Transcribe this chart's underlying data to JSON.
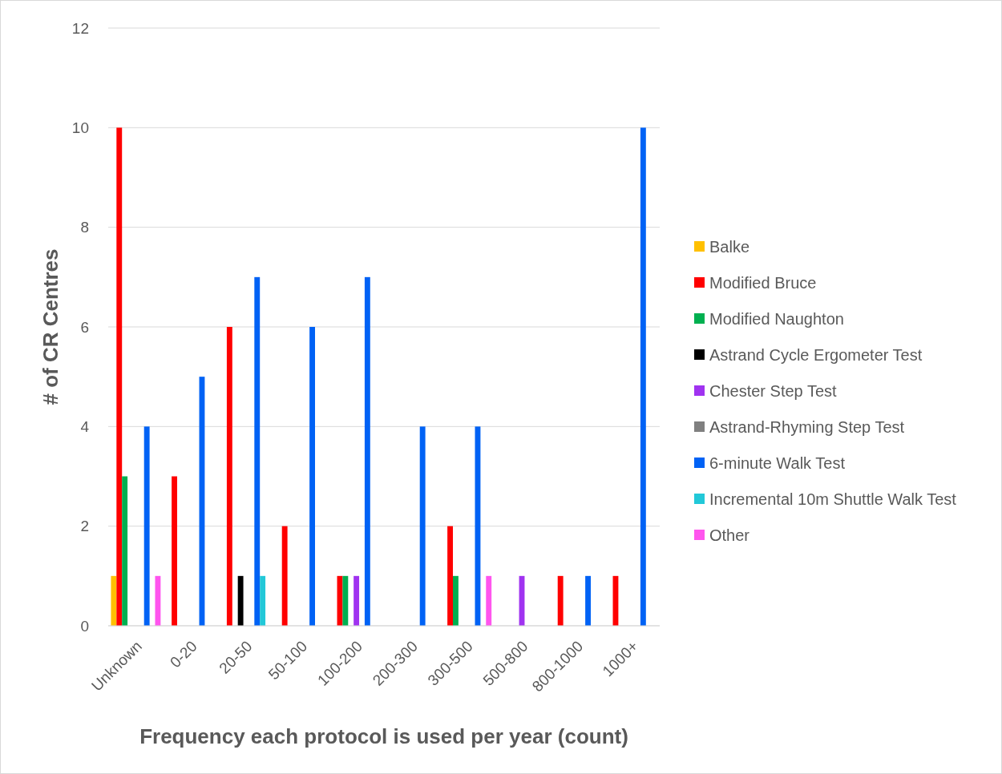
{
  "chart_data": {
    "type": "bar",
    "xlabel": "Frequency each protocol is used per year (count)",
    "ylabel": "# of CR Centres",
    "categories": [
      "Unknown",
      "0-20",
      "20-50",
      "50-100",
      "100-200",
      "200-300",
      "300-500",
      "500-800",
      "800-1000",
      "1000+"
    ],
    "series": [
      {
        "name": "Balke",
        "color": "#ffc000",
        "values": [
          1,
          null,
          null,
          null,
          null,
          null,
          null,
          null,
          null,
          null
        ]
      },
      {
        "name": "Modified Bruce",
        "color": "#ff0000",
        "values": [
          10,
          3,
          6,
          2,
          1,
          null,
          2,
          null,
          1,
          1
        ]
      },
      {
        "name": "Modified Naughton",
        "color": "#00b050",
        "values": [
          3,
          null,
          null,
          null,
          1,
          null,
          1,
          null,
          null,
          null
        ]
      },
      {
        "name": "Astrand Cycle Ergometer Test",
        "color": "#000000",
        "values": [
          null,
          null,
          1,
          null,
          null,
          null,
          null,
          null,
          null,
          null
        ]
      },
      {
        "name": "Chester Step Test",
        "color": "#a033f0",
        "values": [
          null,
          null,
          null,
          null,
          1,
          null,
          null,
          1,
          null,
          null
        ]
      },
      {
        "name": "Astrand-Rhyming Step Test",
        "color": "#808080",
        "values": [
          null,
          null,
          null,
          null,
          null,
          null,
          null,
          null,
          null,
          null
        ]
      },
      {
        "name": "6-minute Walk Test",
        "color": "#0062f5",
        "values": [
          4,
          5,
          7,
          6,
          7,
          4,
          4,
          null,
          1,
          10
        ]
      },
      {
        "name": "Incremental 10m Shuttle Walk Test",
        "color": "#22c8d8",
        "values": [
          null,
          null,
          1,
          null,
          null,
          null,
          null,
          null,
          null,
          null
        ]
      },
      {
        "name": "Other",
        "color": "#ff55ee",
        "values": [
          1,
          null,
          null,
          null,
          null,
          null,
          1,
          null,
          null,
          null
        ]
      }
    ],
    "ylim": [
      0,
      12
    ],
    "yticks": [
      0,
      2,
      4,
      6,
      8,
      10,
      12
    ],
    "grid": "y",
    "legend": "right"
  }
}
